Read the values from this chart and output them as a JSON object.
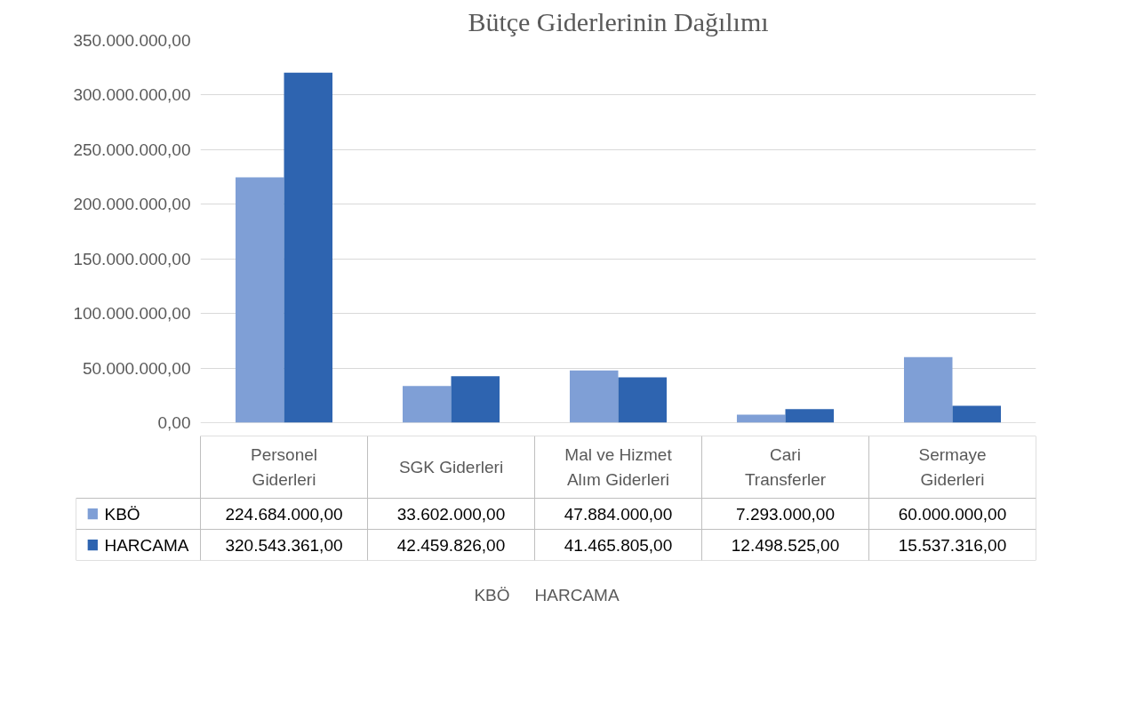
{
  "chart_data": {
    "type": "bar",
    "title": "Bütçe Giderlerinin Dağılımı",
    "categories": [
      "Personel Giderleri",
      "SGK Giderleri",
      "Mal ve Hizmet Alım Giderleri",
      "Cari Transferler",
      "Sermaye Giderleri"
    ],
    "series": [
      {
        "name": "KBÖ",
        "color": "#7f9fd6",
        "values": [
          224684000,
          33602000,
          47884000,
          7293000,
          60000000
        ],
        "value_labels": [
          "224.684.000,00",
          "33.602.000,00",
          "47.884.000,00",
          "7.293.000,00",
          "60.000.000,00"
        ]
      },
      {
        "name": "HARCAMA",
        "color": "#2e64b0",
        "values": [
          320543361,
          42459826,
          41465805,
          12498525,
          15537316
        ],
        "value_labels": [
          "320.543.361,00",
          "42.459.826,00",
          "41.465.805,00",
          "12.498.525,00",
          "15.537.316,00"
        ]
      }
    ],
    "ylim": [
      0,
      350000000
    ],
    "yticks": [
      {
        "value": 0,
        "label": "0,00"
      },
      {
        "value": 50000000,
        "label": "50.000.000,00"
      },
      {
        "value": 100000000,
        "label": "100.000.000,00"
      },
      {
        "value": 150000000,
        "label": "150.000.000,00"
      },
      {
        "value": 200000000,
        "label": "200.000.000,00"
      },
      {
        "value": 250000000,
        "label": "250.000.000,00"
      },
      {
        "value": 300000000,
        "label": "300.000.000,00"
      },
      {
        "value": 350000000,
        "label": "350.000.000,00"
      }
    ],
    "grid": "y",
    "legend": "bottom"
  }
}
